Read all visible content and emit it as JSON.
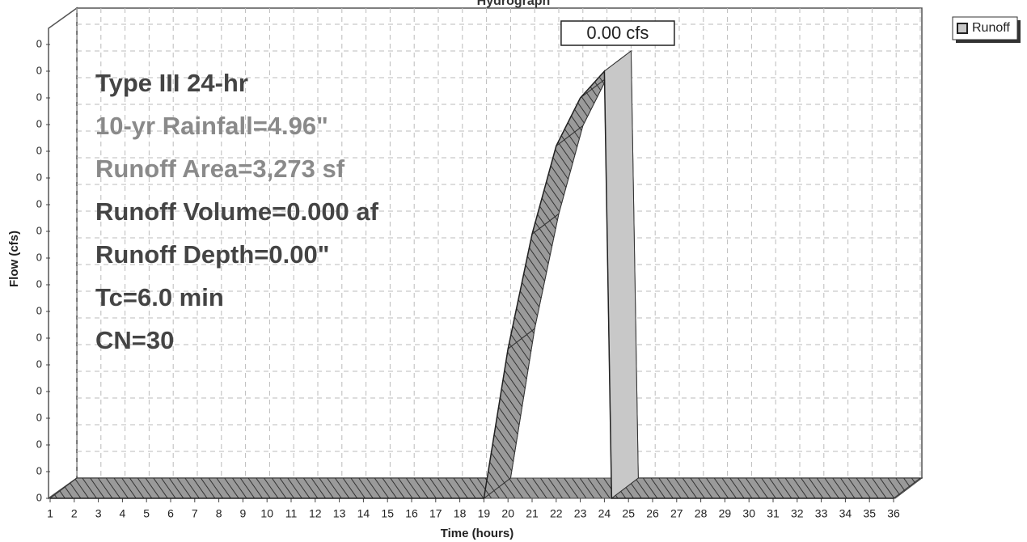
{
  "chart_data": {
    "type": "area3d",
    "title": "Hydrograph",
    "xlabel": "Time (hours)",
    "ylabel": "Flow (cfs)",
    "series": [
      {
        "name": "Runoff",
        "color": "#c8c8c8",
        "x": [
          1,
          19,
          20,
          21,
          22,
          23,
          24,
          24.3,
          36
        ],
        "values": [
          0,
          0,
          0.00056,
          0.00099,
          0.00132,
          0.0015,
          0.0016,
          0,
          0
        ]
      }
    ],
    "annotations": [
      {
        "x": 24,
        "value": 0.0016,
        "label": "0.00 cfs"
      }
    ],
    "notes": [
      {
        "text": "Type III 24-hr",
        "color": "#444444"
      },
      {
        "text": "10-yr Rainfall=4.96\"",
        "color": "#8a8a8a"
      },
      {
        "text": "Runoff Area=3,273 sf",
        "color": "#8a8a8a"
      },
      {
        "text": "Runoff Volume=0.000 af",
        "color": "#444444"
      },
      {
        "text": "Runoff Depth=0.00\"",
        "color": "#444444"
      },
      {
        "text": "Tc=6.0 min",
        "color": "#444444"
      },
      {
        "text": "CN=30",
        "color": "#444444"
      }
    ],
    "xlim": [
      1,
      36
    ],
    "xticks": [
      1,
      2,
      3,
      4,
      5,
      6,
      7,
      8,
      9,
      10,
      11,
      12,
      13,
      14,
      15,
      16,
      17,
      18,
      19,
      20,
      21,
      22,
      23,
      24,
      25,
      26,
      27,
      28,
      29,
      30,
      31,
      32,
      33,
      34,
      35,
      36
    ],
    "ylim": [
      0,
      0.0017
    ],
    "yticks": [
      {
        "value": 0,
        "label": "0"
      },
      {
        "value": 0.0001,
        "label": "0"
      },
      {
        "value": 0.0002,
        "label": "0"
      },
      {
        "value": 0.0003,
        "label": "0"
      },
      {
        "value": 0.0004,
        "label": "0"
      },
      {
        "value": 0.0005,
        "label": "0"
      },
      {
        "value": 0.0006,
        "label": "0"
      },
      {
        "value": 0.0007,
        "label": "0"
      },
      {
        "value": 0.0008,
        "label": "0"
      },
      {
        "value": 0.0009,
        "label": "0"
      },
      {
        "value": 0.001,
        "label": "0"
      },
      {
        "value": 0.0011,
        "label": "0"
      },
      {
        "value": 0.0012,
        "label": "0"
      },
      {
        "value": 0.0013,
        "label": "0"
      },
      {
        "value": 0.0014,
        "label": "0"
      },
      {
        "value": 0.0015,
        "label": "0"
      },
      {
        "value": 0.0016,
        "label": "0"
      },
      {
        "value": 0.0017,
        "label": "0"
      }
    ],
    "grid": true,
    "legend": "top-right"
  }
}
